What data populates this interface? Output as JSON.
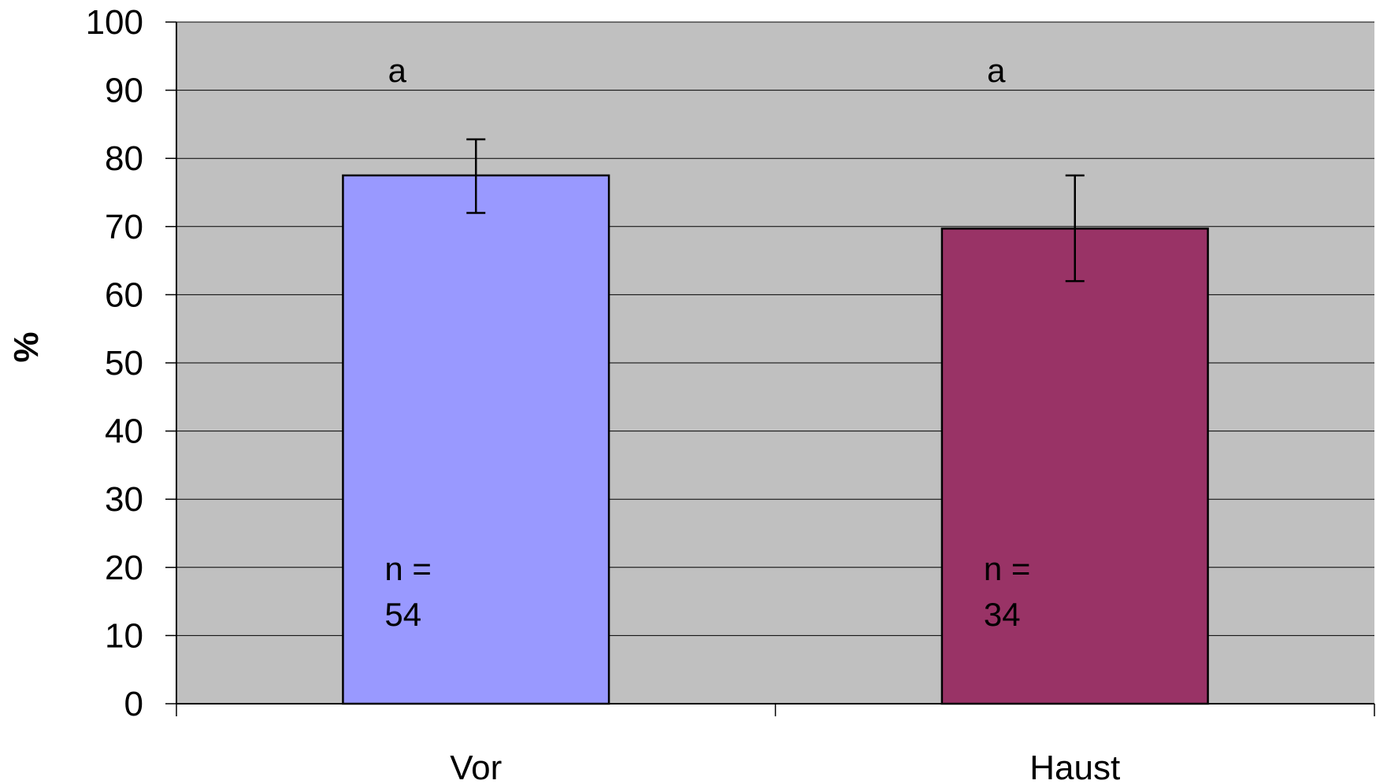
{
  "chart_data": {
    "type": "bar",
    "title": "",
    "xlabel": "",
    "ylabel": "%",
    "ylim": [
      0,
      100
    ],
    "ytick_step": 10,
    "grid": true,
    "categories": [
      "Vor",
      "Haust"
    ],
    "values": [
      77.5,
      69.7
    ],
    "error_bars": [
      {
        "lower": 72.0,
        "upper": 82.8
      },
      {
        "lower": 62.0,
        "upper": 77.5
      }
    ],
    "significance_letters": [
      "a",
      "a"
    ],
    "sample_sizes": [
      {
        "prefix": "n =",
        "count": "54"
      },
      {
        "prefix": "n =",
        "count": "34"
      }
    ],
    "colors": {
      "plot_background": "#c0c0c0",
      "gridline": "#000000",
      "bars": [
        "#9999ff",
        "#993366"
      ],
      "bar_outline": "#000000"
    }
  }
}
